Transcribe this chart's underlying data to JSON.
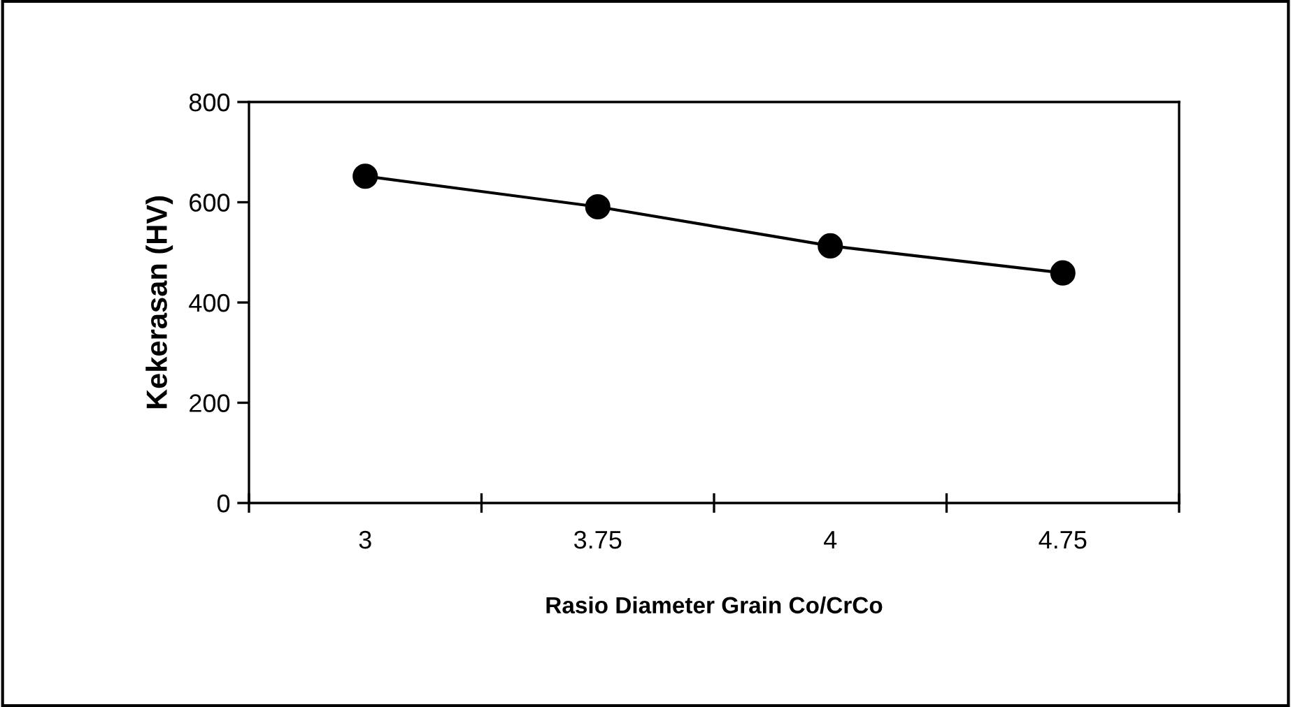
{
  "chart_data": {
    "type": "line",
    "xlabel": "Rasio Diameter Grain Co/CrCo",
    "ylabel": "Kekerasan (HV)",
    "categories": [
      "3",
      "3.75",
      "4",
      "4.75"
    ],
    "series": [
      {
        "color": "#000000",
        "values": [
          652,
          591,
          513,
          459
        ]
      }
    ],
    "ylim": [
      0,
      800
    ],
    "yticks": [
      0,
      200,
      400,
      600,
      800
    ],
    "grid": false,
    "legend": false,
    "marker": "circle",
    "line_style": "solid"
  }
}
